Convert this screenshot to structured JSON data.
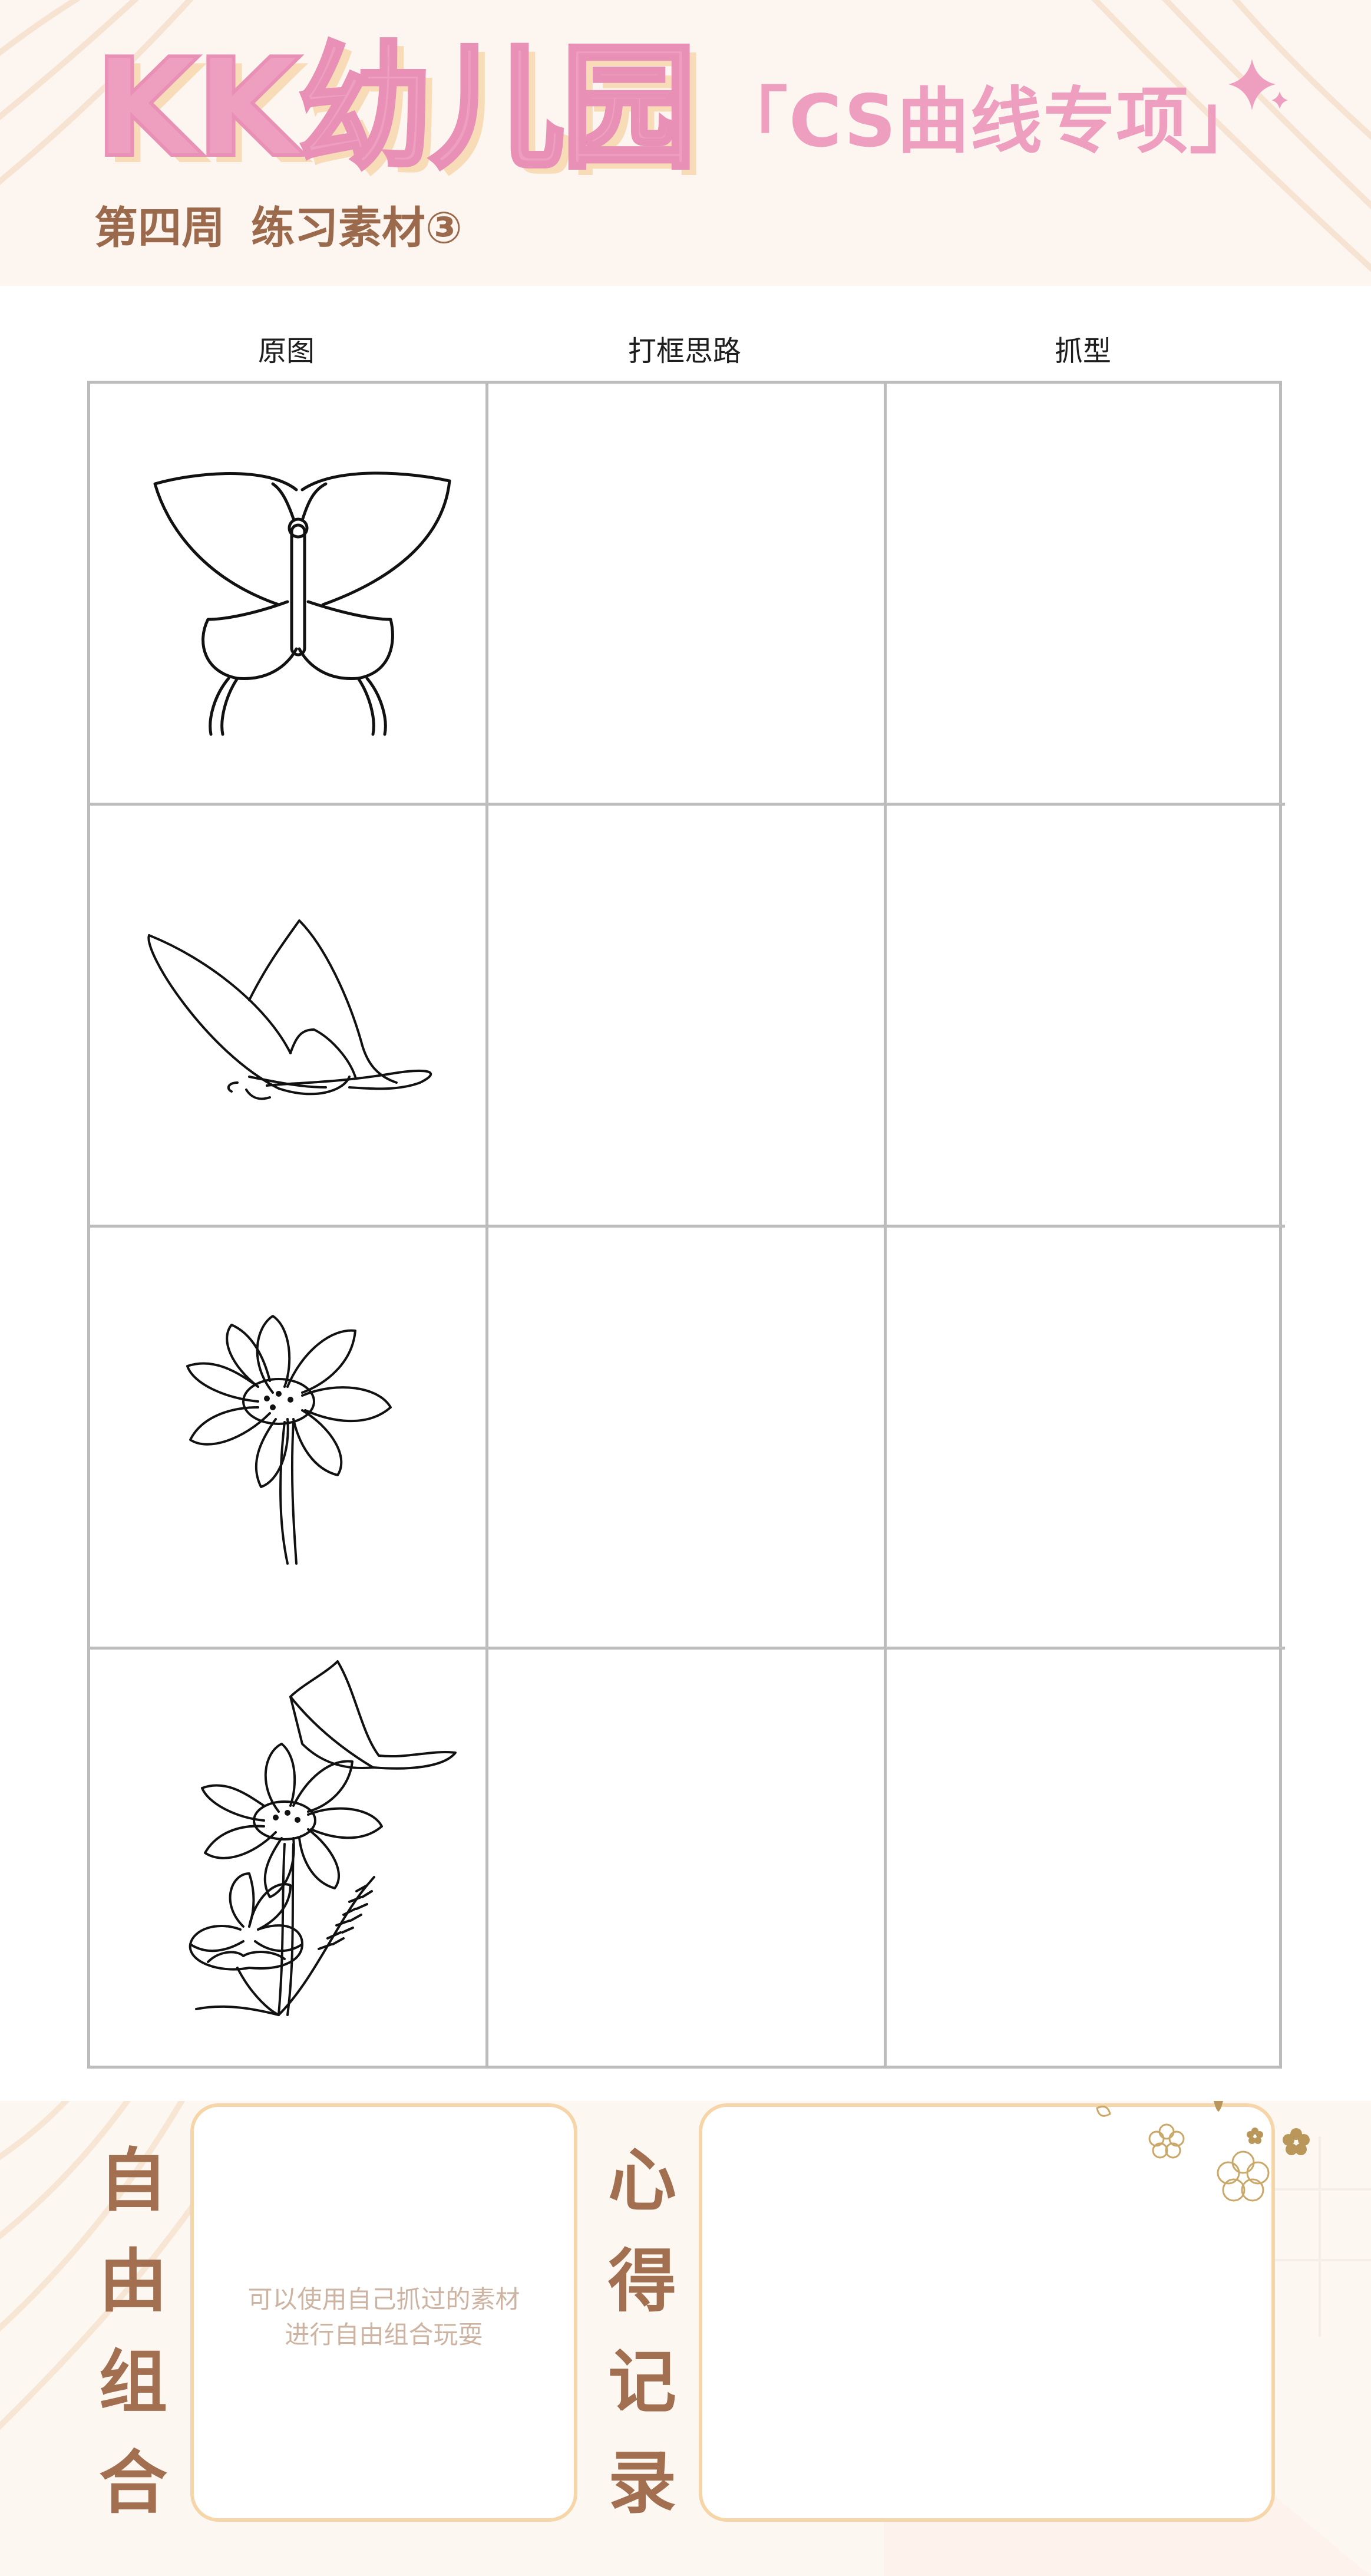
{
  "header": {
    "brand": "KK幼儿园",
    "topic": "「CS曲线专项」",
    "subtitle_week": "第四周",
    "subtitle_material": "练习素材③"
  },
  "table": {
    "columns": [
      "原图",
      "打框思路",
      "抓型"
    ],
    "rows": [
      {
        "subject": "butterfly-front"
      },
      {
        "subject": "butterfly-side"
      },
      {
        "subject": "daisy-flower"
      },
      {
        "subject": "flowers-with-butterfly"
      }
    ]
  },
  "footer": {
    "free_combo_title": [
      "自",
      "由",
      "组",
      "合"
    ],
    "free_combo_hint": [
      "可以使用自己抓过的素材",
      "进行自由组合玩耍"
    ],
    "notes_title": [
      "心",
      "得",
      "记",
      "录"
    ]
  },
  "colors": {
    "brand_pink": "#ee9fc0",
    "brand_shadow": "#f8dcb8",
    "brown_text": "#a27050",
    "box_border": "#f6d6a9",
    "grid_line": "#bcbcbc"
  }
}
